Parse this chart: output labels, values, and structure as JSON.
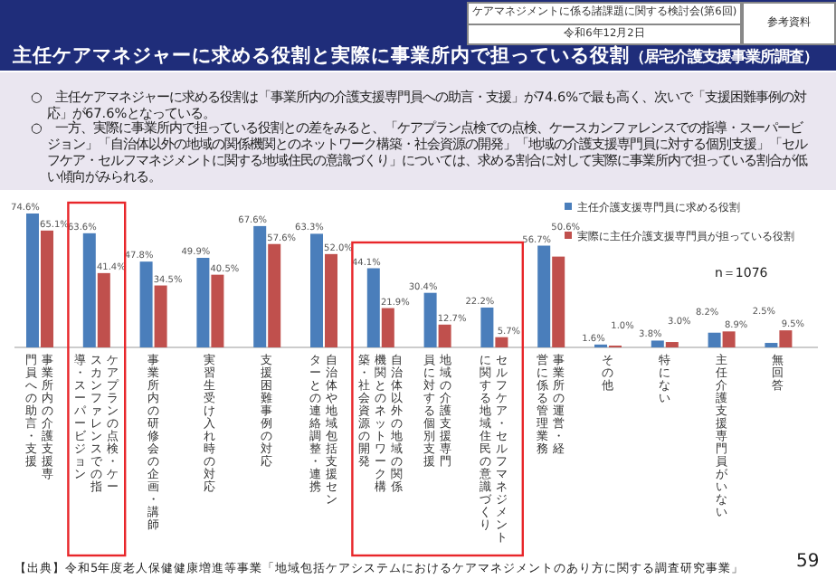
{
  "chart_data": {
    "type": "bar",
    "title": "主任ケアマネジャーに求める役割と実際に事業所内で担っている役割",
    "subtitle": "（居宅介護支援事業所調査）",
    "categories": [
      "事業所内の介護支援専門員への助言・支援",
      "ケアプランの点検・ケースカンファレンスでの指導・スーパービジョン",
      "事業所内の研修会の企画・講師",
      "実習生受け入れ時の対応",
      "支援困難事例の対応",
      "自治体や地域包括支援センターとの連絡調整・連携",
      "自治体以外の地域の関係機関とのネットワーク構築・社会資源の開発",
      "地域の介護支援専門員に対する個別支援",
      "セルフケア・セルフマネジメントに関する地域住民の意識づくり",
      "事業所の運営・経営に係る管理業務",
      "その他",
      "特にない",
      "主任介護支援専門員がいない",
      "無回答"
    ],
    "series": [
      {
        "name": "主任介護支援専門員に求める役割",
        "color": "#4a7ebb",
        "values": [
          74.6,
          63.6,
          47.8,
          49.9,
          67.6,
          63.3,
          44.1,
          30.4,
          22.2,
          56.7,
          1.6,
          3.8,
          8.2,
          2.5
        ],
        "value_labels": [
          "74.6%",
          "63.6%",
          "47.8%",
          "49.9%",
          "67.6%",
          "63.3%",
          "44.1%",
          "30.4%",
          "22.2%",
          "56.7%",
          "1.6%",
          "3.8%",
          "8.2%",
          "2.5%"
        ]
      },
      {
        "name": "実際に主任介護支援専門員が担っている役割",
        "color": "#c0504d",
        "values": [
          65.1,
          41.4,
          34.5,
          40.5,
          57.6,
          52.0,
          21.9,
          12.7,
          5.7,
          50.6,
          1.0,
          3.0,
          8.9,
          9.5
        ],
        "value_labels": [
          "65.1%",
          "41.4%",
          "34.5%",
          "40.5%",
          "57.6%",
          "52.0%",
          "21.9%",
          "12.7%",
          "5.7%",
          "50.6%",
          "1.0%",
          "3.0%",
          "8.9%",
          "9.5%"
        ]
      }
    ],
    "legend": "top right",
    "grid": false,
    "annotations": [
      "ケアマネジメントに係る諸課題に関する検討会(第6回)",
      "令和6年12月2日",
      "参考資料",
      "○　主任ケアマネジャーに求める役割は「事業所内の介護支援専門員への助言・支援」が74.6%で最も高く、次いで「支援困難事例の対応」が67.6%となっている。",
      "○　一方、実際に事業所内で担っている役割との差をみると、「ケアプラン点検での点検、ケースカンファレンスでの指導・スーパービジョン」「自治体以外の地域の関係機関とのネットワーク構築・社会資源の開発」「地域の介護支援専門員に対する個別支援」「セルフケア・セルフマネジメントに関する地域住民の意識づくり」については、求める割合に対して実際に事業所内で担っている割合が低い傾向がみられる。",
      "n＝1076",
      "【出典】令和5年度老人保健健康増進等事業「地域包括ケアシステムにおけるケアマネジメントのあり方に関する調査研究事業」",
      "59"
    ]
  }
}
